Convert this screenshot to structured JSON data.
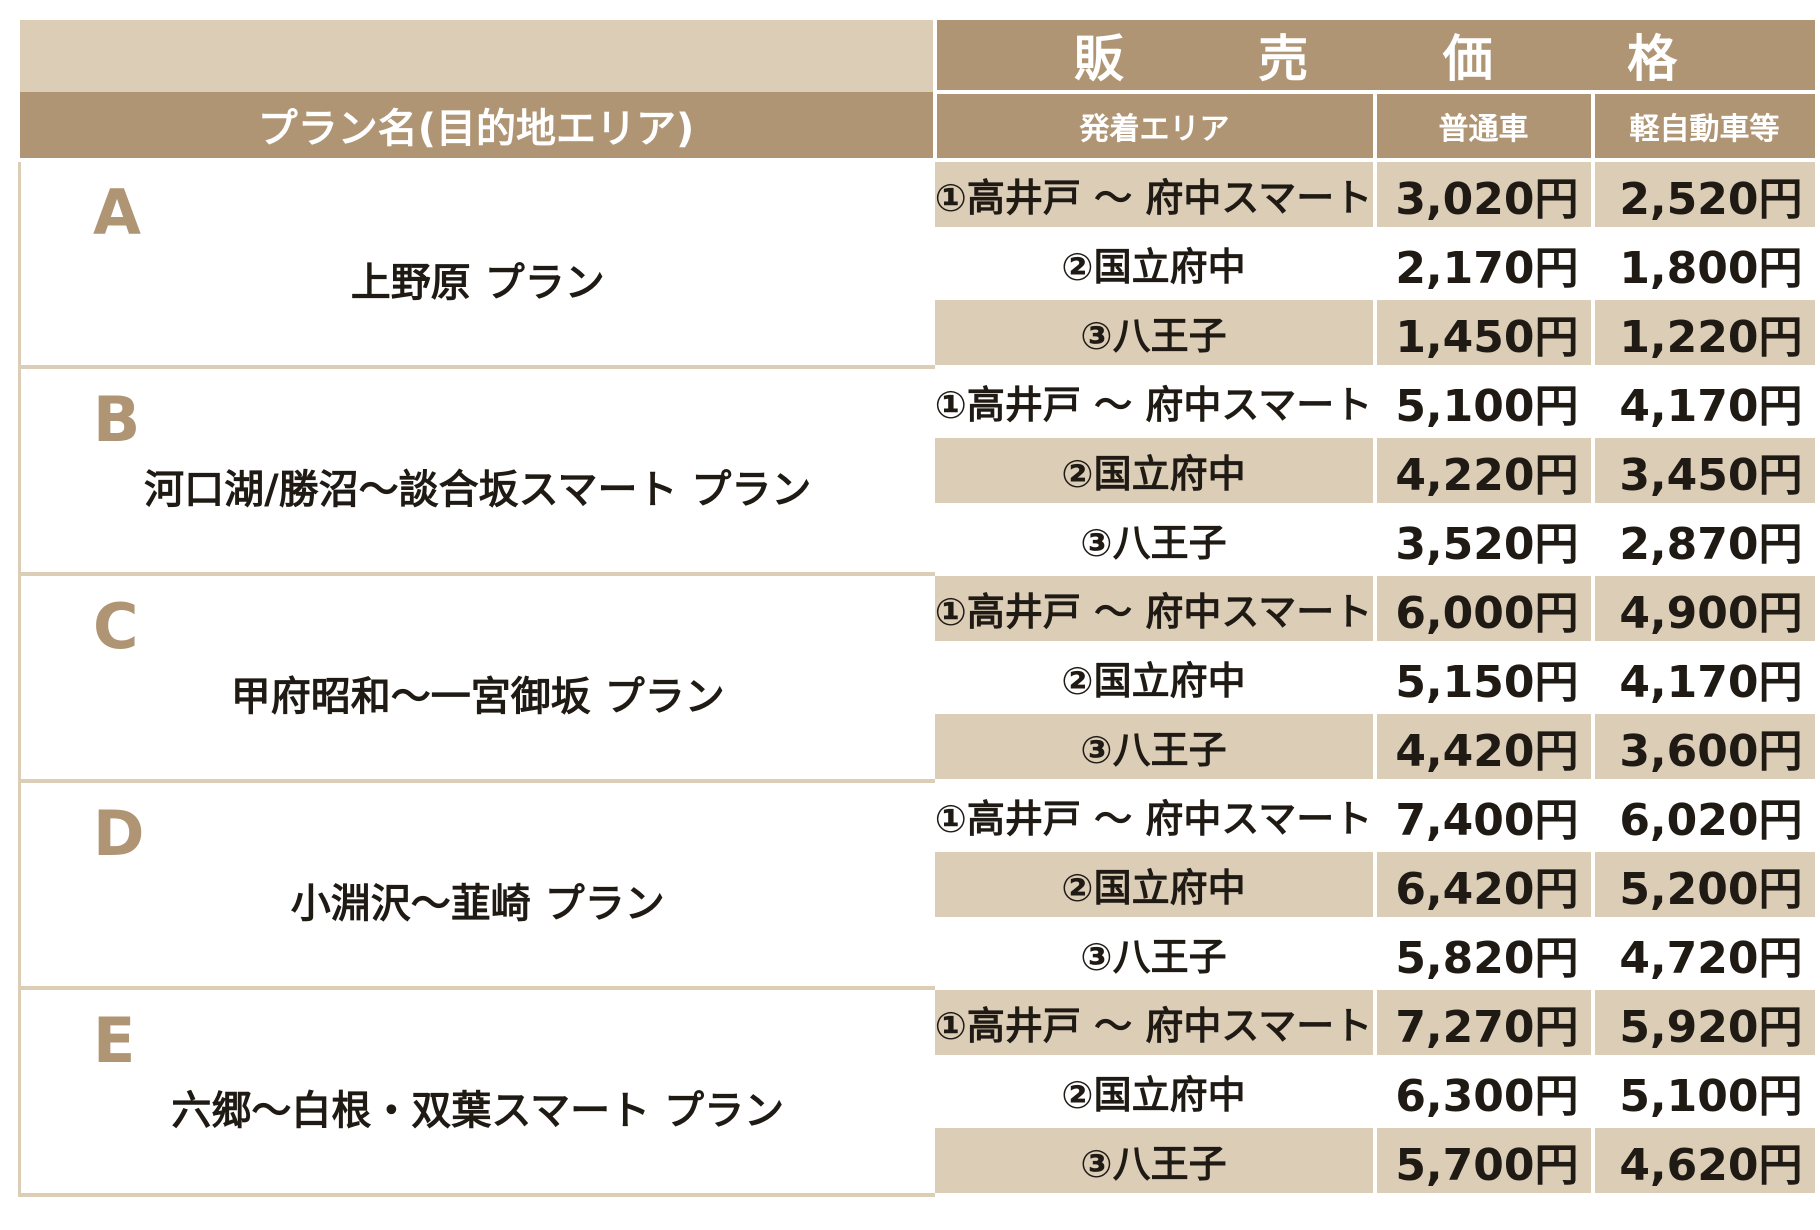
{
  "header": {
    "title_chars": [
      "販",
      "売",
      "価",
      "格"
    ],
    "plan_col": "プラン名(目的地エリア)",
    "area_col": "発着エリア",
    "standard_col": "普通車",
    "kei_col": "軽自動車等"
  },
  "plans": [
    {
      "letter": "A",
      "name": "上野原 プラン",
      "rows": [
        {
          "area": "①高井戸 〜 府中スマート",
          "standard": "3,020円",
          "kei": "2,520円"
        },
        {
          "area": "②国立府中",
          "standard": "2,170円",
          "kei": "1,800円"
        },
        {
          "area": "③八王子",
          "standard": "1,450円",
          "kei": "1,220円"
        }
      ]
    },
    {
      "letter": "B",
      "name": "河口湖/勝沼〜談合坂スマート プラン",
      "rows": [
        {
          "area": "①高井戸 〜 府中スマート",
          "standard": "5,100円",
          "kei": "4,170円"
        },
        {
          "area": "②国立府中",
          "standard": "4,220円",
          "kei": "3,450円"
        },
        {
          "area": "③八王子",
          "standard": "3,520円",
          "kei": "2,870円"
        }
      ]
    },
    {
      "letter": "C",
      "name": "甲府昭和〜一宮御坂 プラン",
      "rows": [
        {
          "area": "①高井戸 〜 府中スマート",
          "standard": "6,000円",
          "kei": "4,900円"
        },
        {
          "area": "②国立府中",
          "standard": "5,150円",
          "kei": "4,170円"
        },
        {
          "area": "③八王子",
          "standard": "4,420円",
          "kei": "3,600円"
        }
      ]
    },
    {
      "letter": "D",
      "name": "小淵沢〜韮崎 プラン",
      "rows": [
        {
          "area": "①高井戸 〜 府中スマート",
          "standard": "7,400円",
          "kei": "6,020円"
        },
        {
          "area": "②国立府中",
          "standard": "6,420円",
          "kei": "5,200円"
        },
        {
          "area": "③八王子",
          "standard": "5,820円",
          "kei": "4,720円"
        }
      ]
    },
    {
      "letter": "E",
      "name": "六郷〜白根・双葉スマート プラン",
      "rows": [
        {
          "area": "①高井戸 〜 府中スマート",
          "standard": "7,270円",
          "kei": "5,920円"
        },
        {
          "area": "②国立府中",
          "standard": "6,300円",
          "kei": "5,100円"
        },
        {
          "area": "③八王子",
          "standard": "5,700円",
          "kei": "4,620円"
        }
      ]
    }
  ],
  "colors": {
    "header_dark": "#b09574",
    "header_light": "#dccdb7",
    "letter": "#b09574",
    "text": "#1f1a14"
  }
}
